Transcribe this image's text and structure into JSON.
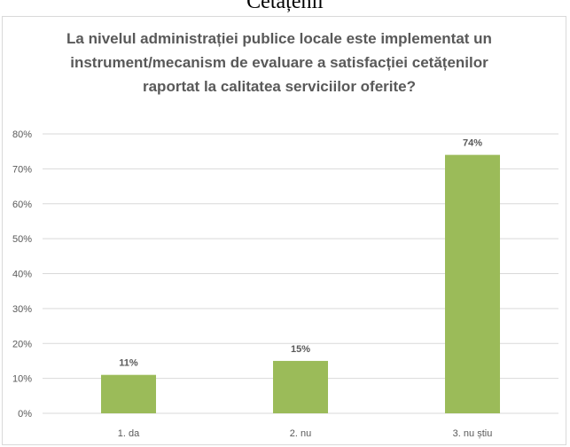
{
  "page": {
    "heading": "Cetățenii"
  },
  "chart_data": {
    "type": "bar",
    "title": "La nivelul administrației publice locale este implementat un instrument/mecanism de evaluare a satisfacției cetățenilor raportat la calitatea serviciilor oferite?",
    "categories": [
      "1. da",
      "2. nu",
      "3. nu știu"
    ],
    "values": [
      11,
      15,
      74
    ],
    "data_labels": [
      "11%",
      "15%",
      "74%"
    ],
    "yticks": [
      "0%",
      "10%",
      "20%",
      "30%",
      "40%",
      "50%",
      "60%",
      "70%",
      "80%"
    ],
    "ylim": [
      0,
      80
    ],
    "xlabel": "",
    "ylabel": "",
    "grid": true,
    "legend": "none",
    "colors": {
      "bar": "#9bbb59",
      "grid": "#d9d9d9",
      "text": "#595959"
    }
  }
}
